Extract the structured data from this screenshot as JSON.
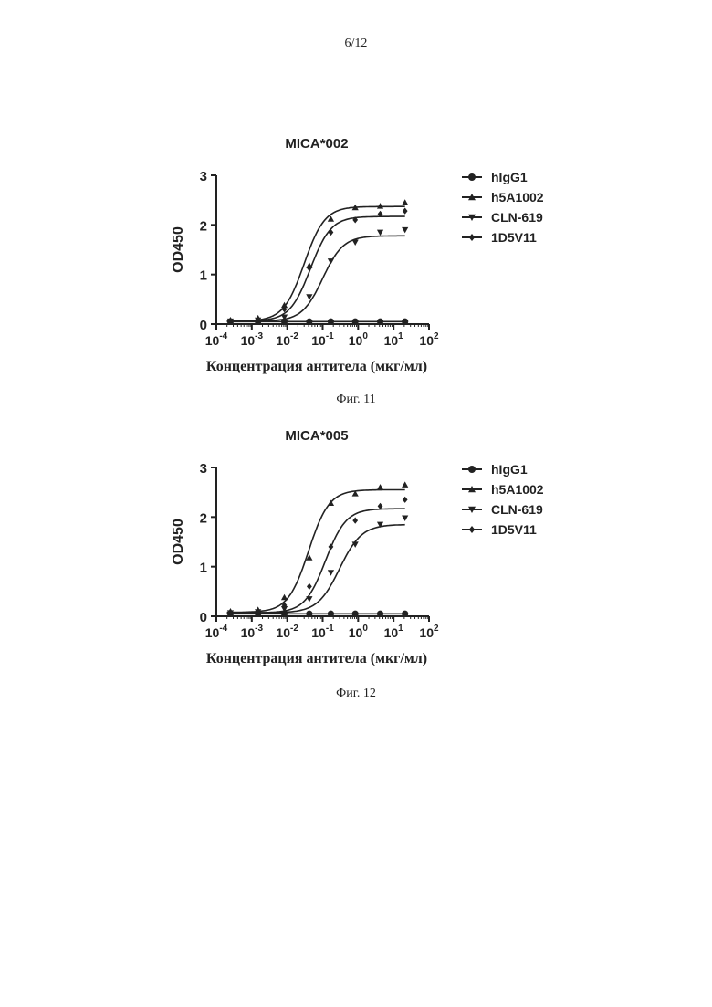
{
  "page": {
    "number": "6/12"
  },
  "figures": [
    {
      "caption": "Фиг. 11"
    },
    {
      "caption": "Фиг. 12"
    }
  ],
  "chart_data": [
    {
      "type": "scatter",
      "title": "MICA*002",
      "xlabel": "Концентрация антитела (мкг/мл)",
      "ylabel": "OD450",
      "x_scale": "log",
      "xlim": [
        0.0001,
        100
      ],
      "ylim": [
        0,
        3
      ],
      "x_ticks": [
        {
          "base": "10",
          "exp": "-4"
        },
        {
          "base": "10",
          "exp": "-3"
        },
        {
          "base": "10",
          "exp": "-2"
        },
        {
          "base": "10",
          "exp": "-1"
        },
        {
          "base": "10",
          "exp": "0"
        },
        {
          "base": "10",
          "exp": "1"
        },
        {
          "base": "10",
          "exp": "2"
        }
      ],
      "y_ticks": [
        "0",
        "1",
        "2",
        "3"
      ],
      "legend_position": "right",
      "series": [
        {
          "name": "hIgG1",
          "marker": "circle",
          "x": [
            0.00025,
            0.0015,
            0.0083,
            0.042,
            0.17,
            0.83,
            4.2,
            21
          ],
          "y": [
            0.05,
            0.05,
            0.05,
            0.05,
            0.05,
            0.05,
            0.05,
            0.05
          ],
          "fit": null
        },
        {
          "name": "h5A1002",
          "marker": "triangle-up",
          "x": [
            0.00025,
            0.0015,
            0.0083,
            0.042,
            0.17,
            0.83,
            4.2,
            21
          ],
          "y": [
            0.08,
            0.12,
            0.38,
            1.18,
            2.12,
            2.35,
            2.38,
            2.45
          ],
          "fit": {
            "bottom": 0.06,
            "top": 2.37,
            "ec50": 0.03,
            "hill": 1.5
          }
        },
        {
          "name": "CLN-619",
          "marker": "triangle-down",
          "x": [
            0.00025,
            0.0015,
            0.0083,
            0.042,
            0.17,
            0.83,
            4.2,
            21
          ],
          "y": [
            0.06,
            0.08,
            0.14,
            0.55,
            1.27,
            1.65,
            1.85,
            1.9
          ],
          "fit": {
            "bottom": 0.06,
            "top": 1.78,
            "ec50": 0.1,
            "hill": 1.5
          }
        },
        {
          "name": "1D5V11",
          "marker": "diamond",
          "x": [
            0.00025,
            0.0015,
            0.0083,
            0.042,
            0.17,
            0.83,
            4.2,
            21
          ],
          "y": [
            0.07,
            0.1,
            0.3,
            1.13,
            1.85,
            2.1,
            2.22,
            2.28
          ],
          "fit": {
            "bottom": 0.06,
            "top": 2.17,
            "ec50": 0.045,
            "hill": 1.5
          }
        }
      ]
    },
    {
      "type": "scatter",
      "title": "MICA*005",
      "xlabel": "Концентрация антитела (мкг/мл)",
      "ylabel": "OD450",
      "x_scale": "log",
      "xlim": [
        0.0001,
        100
      ],
      "ylim": [
        0,
        3
      ],
      "x_ticks": [
        {
          "base": "10",
          "exp": "-4"
        },
        {
          "base": "10",
          "exp": "-3"
        },
        {
          "base": "10",
          "exp": "-2"
        },
        {
          "base": "10",
          "exp": "-1"
        },
        {
          "base": "10",
          "exp": "0"
        },
        {
          "base": "10",
          "exp": "1"
        },
        {
          "base": "10",
          "exp": "2"
        }
      ],
      "y_ticks": [
        "0",
        "1",
        "2",
        "3"
      ],
      "legend_position": "right",
      "series": [
        {
          "name": "hIgG1",
          "marker": "circle",
          "x": [
            0.00025,
            0.0015,
            0.0083,
            0.042,
            0.17,
            0.83,
            4.2,
            21
          ],
          "y": [
            0.05,
            0.05,
            0.05,
            0.05,
            0.05,
            0.05,
            0.05,
            0.05
          ],
          "fit": null
        },
        {
          "name": "h5A1002",
          "marker": "triangle-up",
          "x": [
            0.00025,
            0.0015,
            0.0083,
            0.042,
            0.17,
            0.83,
            4.2,
            21
          ],
          "y": [
            0.1,
            0.13,
            0.38,
            1.18,
            2.28,
            2.47,
            2.6,
            2.65
          ],
          "fit": {
            "bottom": 0.08,
            "top": 2.55,
            "ec50": 0.04,
            "hill": 1.5
          }
        },
        {
          "name": "CLN-619",
          "marker": "triangle-down",
          "x": [
            0.00025,
            0.0015,
            0.0083,
            0.042,
            0.17,
            0.83,
            4.2,
            21
          ],
          "y": [
            0.07,
            0.09,
            0.15,
            0.35,
            0.88,
            1.45,
            1.85,
            1.98
          ],
          "fit": {
            "bottom": 0.07,
            "top": 1.85,
            "ec50": 0.3,
            "hill": 1.4
          }
        },
        {
          "name": "1D5V11",
          "marker": "diamond",
          "x": [
            0.00025,
            0.0015,
            0.0083,
            0.042,
            0.17,
            0.83,
            4.2,
            21
          ],
          "y": [
            0.08,
            0.1,
            0.22,
            0.6,
            1.4,
            1.93,
            2.22,
            2.35
          ],
          "fit": {
            "bottom": 0.07,
            "top": 2.17,
            "ec50": 0.12,
            "hill": 1.5
          }
        }
      ]
    }
  ]
}
